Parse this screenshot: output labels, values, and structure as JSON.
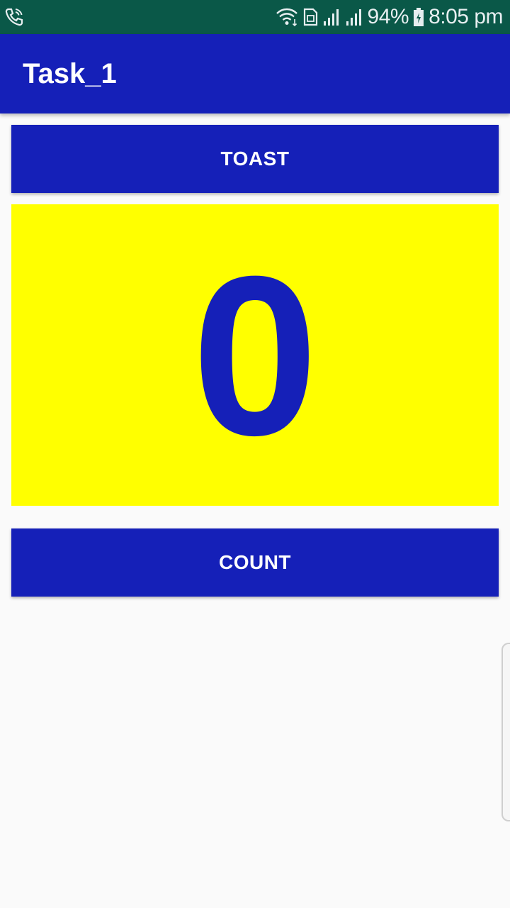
{
  "status_bar": {
    "battery_percent": "94%",
    "time": "8:05 pm",
    "background_color": "#0a5848",
    "icons": [
      "phone-call-icon",
      "wifi-icon",
      "sim-card-icon",
      "signal-icon",
      "signal-icon",
      "battery-charging-icon"
    ]
  },
  "app_bar": {
    "title": "Task_1",
    "color": "#1520b8"
  },
  "main": {
    "toast_button_label": "TOAST",
    "count_value": "0",
    "count_panel_color": "#ffff00",
    "count_button_label": "COUNT"
  }
}
